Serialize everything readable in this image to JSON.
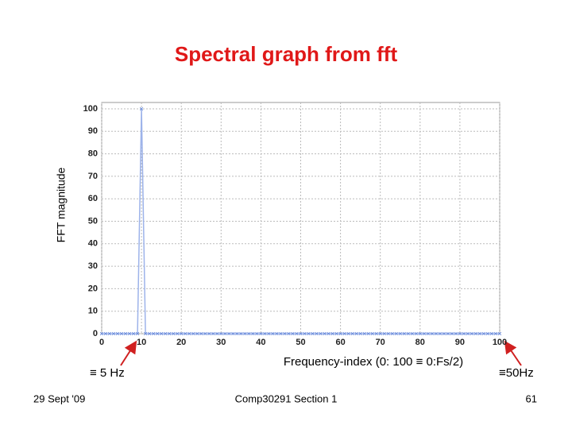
{
  "chart_data": {
    "type": "line",
    "title": "Spectral graph from fft",
    "y_label": "FFT magnitude",
    "x_label": "Frequency-index (0: 100 ≡ 0:Fs/2)",
    "annotations": [
      "≡ 5 Hz",
      "≡50Hz"
    ],
    "x": [
      0,
      1,
      2,
      3,
      4,
      5,
      6,
      7,
      8,
      9,
      10,
      11,
      12,
      13,
      14,
      15,
      16,
      17,
      18,
      19,
      20,
      21,
      22,
      23,
      24,
      25,
      26,
      27,
      28,
      29,
      30,
      31,
      32,
      33,
      34,
      35,
      36,
      37,
      38,
      39,
      40,
      41,
      42,
      43,
      44,
      45,
      46,
      47,
      48,
      49,
      50,
      51,
      52,
      53,
      54,
      55,
      56,
      57,
      58,
      59,
      60,
      61,
      62,
      63,
      64,
      65,
      66,
      67,
      68,
      69,
      70,
      71,
      72,
      73,
      74,
      75,
      76,
      77,
      78,
      79,
      80,
      81,
      82,
      83,
      84,
      85,
      86,
      87,
      88,
      89,
      90,
      91,
      92,
      93,
      94,
      95,
      96,
      97,
      98,
      99,
      100
    ],
    "values": [
      0,
      0,
      0,
      0,
      0,
      0,
      0,
      0,
      0,
      0,
      100,
      0,
      0,
      0,
      0,
      0,
      0,
      0,
      0,
      0,
      0,
      0,
      0,
      0,
      0,
      0,
      0,
      0,
      0,
      0,
      0,
      0,
      0,
      0,
      0,
      0,
      0,
      0,
      0,
      0,
      0,
      0,
      0,
      0,
      0,
      0,
      0,
      0,
      0,
      0,
      0,
      0,
      0,
      0,
      0,
      0,
      0,
      0,
      0,
      0,
      0,
      0,
      0,
      0,
      0,
      0,
      0,
      0,
      0,
      0,
      0,
      0,
      0,
      0,
      0,
      0,
      0,
      0,
      0,
      0,
      0,
      0,
      0,
      0,
      0,
      0,
      0,
      0,
      0,
      0,
      0,
      0,
      0,
      0,
      0,
      0,
      0,
      0,
      0,
      0,
      0
    ],
    "color": "#9db3ea",
    "marker_color": "#6f8fdc",
    "xlim": [
      0,
      100
    ],
    "xticks": [
      0,
      10,
      20,
      30,
      40,
      50,
      60,
      70,
      80,
      90,
      100
    ],
    "ylim": [
      0,
      100
    ],
    "yticks": [
      0,
      10,
      20,
      30,
      40,
      50,
      60,
      70,
      80,
      90,
      100
    ],
    "grid": true
  },
  "footer": {
    "date": "29 Sept '09",
    "course": "Comp30291 Section 1",
    "page": "61"
  }
}
